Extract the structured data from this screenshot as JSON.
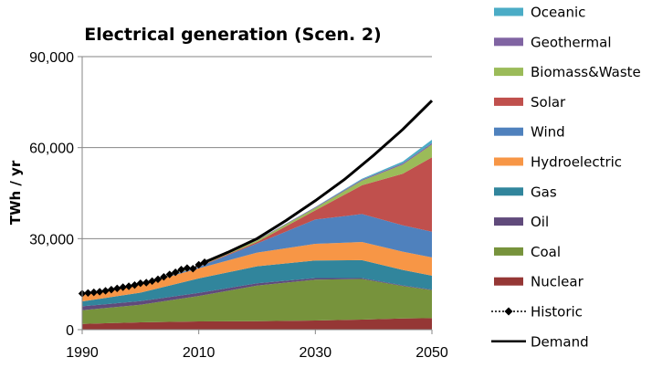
{
  "chart_data": {
    "type": "area",
    "title": "Electrical generation (Scen. 2)",
    "xlabel": "",
    "ylabel": "TWh / yr",
    "xlim": [
      1990,
      2050
    ],
    "ylim": [
      0,
      90000
    ],
    "x_ticks": [
      1990,
      2010,
      2030,
      2050
    ],
    "y_ticks": [
      0,
      30000,
      60000,
      90000
    ],
    "x_tick_labels": [
      "1990",
      "2010",
      "2030",
      "2050"
    ],
    "y_tick_labels": [
      "0",
      "30,000",
      "60,000",
      "90,000"
    ],
    "x": [
      1990,
      2000,
      2010,
      2020,
      2030,
      2038,
      2045,
      2050
    ],
    "stack_order": [
      "Nuclear",
      "Coal",
      "Oil",
      "Gas",
      "Hydroelectric",
      "Wind",
      "Solar",
      "Biomass&Waste",
      "Geothermal",
      "Oceanic"
    ],
    "series": [
      {
        "name": "Oceanic",
        "color": "#4bacc6",
        "values": [
          0,
          0,
          0,
          0,
          100,
          300,
          600,
          1100
        ]
      },
      {
        "name": "Geothermal",
        "color": "#8064a2",
        "values": [
          50,
          60,
          70,
          150,
          250,
          350,
          400,
          500
        ]
      },
      {
        "name": "Biomass&Waste",
        "color": "#9bbb59",
        "values": [
          100,
          200,
          300,
          500,
          800,
          1500,
          3000,
          4200
        ]
      },
      {
        "name": "Solar",
        "color": "#c0504d",
        "values": [
          0,
          0,
          100,
          500,
          3000,
          9500,
          17000,
          24500
        ]
      },
      {
        "name": "Wind",
        "color": "#4f81bd",
        "values": [
          0,
          50,
          500,
          3000,
          8000,
          9200,
          8700,
          8500
        ]
      },
      {
        "name": "Hydroelectric",
        "color": "#f79646",
        "values": [
          2200,
          2600,
          3300,
          4500,
          5500,
          6000,
          6000,
          6000
        ]
      },
      {
        "name": "Gas",
        "color": "#31859c",
        "values": [
          1600,
          2800,
          4800,
          5600,
          5800,
          5900,
          5100,
          4600
        ]
      },
      {
        "name": "Oil",
        "color": "#604a7b",
        "values": [
          1300,
          1200,
          1000,
          800,
          500,
          300,
          200,
          200
        ]
      },
      {
        "name": "Coal",
        "color": "#77933c",
        "values": [
          4500,
          5800,
          8400,
          11700,
          13500,
          13400,
          10700,
          9200
        ]
      },
      {
        "name": "Nuclear",
        "color": "#953735",
        "values": [
          1900,
          2400,
          2700,
          2800,
          3000,
          3300,
          3700,
          3800
        ]
      }
    ],
    "historic": {
      "name": "Historic",
      "x": [
        1990,
        1991,
        1992,
        1993,
        1994,
        1995,
        1996,
        1997,
        1998,
        1999,
        2000,
        2001,
        2002,
        2003,
        2004,
        2005,
        2006,
        2007,
        2008,
        2009,
        2010,
        2011
      ],
      "values": [
        11900,
        12100,
        12300,
        12500,
        12800,
        13200,
        13600,
        14000,
        14300,
        14700,
        15300,
        15500,
        16000,
        16600,
        17400,
        18200,
        18900,
        19800,
        20300,
        20100,
        21400,
        22200
      ]
    },
    "demand": {
      "name": "Demand",
      "x": [
        2010,
        2015,
        2020,
        2025,
        2030,
        2035,
        2040,
        2045,
        2050
      ],
      "values": [
        21400,
        25500,
        30000,
        36000,
        42500,
        49500,
        57500,
        66000,
        75500
      ]
    },
    "legend": {
      "placement": "right",
      "entries": [
        {
          "label": "Oceanic",
          "color": "#4bacc6",
          "kind": "area"
        },
        {
          "label": "Geothermal",
          "color": "#8064a2",
          "kind": "area"
        },
        {
          "label": "Biomass&Waste",
          "color": "#9bbb59",
          "kind": "area"
        },
        {
          "label": "Solar",
          "color": "#c0504d",
          "kind": "area"
        },
        {
          "label": "Wind",
          "color": "#4f81bd",
          "kind": "area"
        },
        {
          "label": "Hydroelectric",
          "color": "#f79646",
          "kind": "area"
        },
        {
          "label": "Gas",
          "color": "#31859c",
          "kind": "area"
        },
        {
          "label": "Oil",
          "color": "#604a7b",
          "kind": "area"
        },
        {
          "label": "Coal",
          "color": "#77933c",
          "kind": "area"
        },
        {
          "label": "Nuclear",
          "color": "#953735",
          "kind": "area"
        },
        {
          "label": "Historic",
          "color": "#000000",
          "kind": "historic"
        },
        {
          "label": "Demand",
          "color": "#000000",
          "kind": "demand"
        }
      ]
    },
    "grid": {
      "horizontal": true,
      "vertical": false,
      "color": "#868686"
    }
  }
}
